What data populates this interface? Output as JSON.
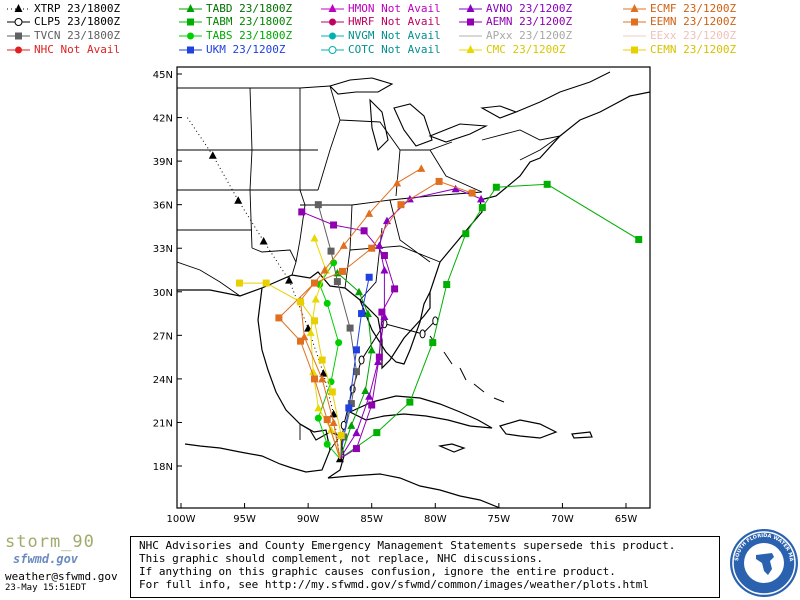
{
  "legend": [
    {
      "id": "xtrp",
      "text": "XTRP 23/1800Z",
      "color": "#000000",
      "marker": "triangle",
      "line": "dotted"
    },
    {
      "id": "clp5",
      "text": "CLP5 23/1800Z",
      "color": "#000000",
      "marker": "circle-open"
    },
    {
      "id": "tvcn",
      "text": "TVCN 23/1800Z",
      "color": "#606060",
      "marker": "square"
    },
    {
      "id": "nhc",
      "text": "NHC Not Avail",
      "color": "#e02020",
      "marker": "circle"
    },
    {
      "id": "tabd",
      "text": "TABD 23/1800Z",
      "color": "#00a000",
      "marker": "triangle"
    },
    {
      "id": "tabm",
      "text": "TABM 23/1800Z",
      "color": "#00b000",
      "marker": "square"
    },
    {
      "id": "tabs",
      "text": "TABS 23/1800Z",
      "color": "#00d000",
      "marker": "circle"
    },
    {
      "id": "ukm",
      "text": "UKM  23/1200Z",
      "color": "#2040e0",
      "marker": "square"
    },
    {
      "id": "hmon",
      "text": "HMON Not Avail",
      "color": "#c000c0",
      "marker": "triangle"
    },
    {
      "id": "hwrf",
      "text": "HWRF Not Avail",
      "color": "#c00060",
      "marker": "circle"
    },
    {
      "id": "nvgm",
      "text": "NVGM Not Avail",
      "color": "#00b0b0",
      "marker": "circle"
    },
    {
      "id": "cotc",
      "text": "COTC Not Avail",
      "color": "#00b0b0",
      "marker": "circle-open"
    },
    {
      "id": "avno",
      "text": "AVNO 23/1200Z",
      "color": "#8a00c0",
      "marker": "triangle"
    },
    {
      "id": "aemn",
      "text": "AEMN 23/1200Z",
      "color": "#9000b0",
      "marker": "square"
    },
    {
      "id": "apxx",
      "text": "APxx 23/1200Z",
      "color": "#b0b0b0",
      "marker": "none"
    },
    {
      "id": "cmc",
      "text": "CMC  23/1200Z",
      "color": "#e8d800",
      "marker": "triangle"
    },
    {
      "id": "ecmf",
      "text": "ECMF 23/1200Z",
      "color": "#e07020",
      "marker": "triangle"
    },
    {
      "id": "eemn",
      "text": "EEMN 23/1200Z",
      "color": "#e07020",
      "marker": "square"
    },
    {
      "id": "eexx",
      "text": "EExx 23/1200Z",
      "color": "#f0c8c0",
      "marker": "none"
    },
    {
      "id": "cemn",
      "text": "CEMN 23/1200Z",
      "color": "#e8d000",
      "marker": "square"
    }
  ],
  "map": {
    "lon_range": [
      -100,
      -62
    ],
    "lat_range": [
      15,
      46
    ],
    "lat_ticks": [
      "45N",
      "42N",
      "39N",
      "36N",
      "33N",
      "30N",
      "27N",
      "24N",
      "21N",
      "18N"
    ],
    "lon_ticks": [
      "100W",
      "95W",
      "90W",
      "85W",
      "80W",
      "75W",
      "70W",
      "65W"
    ]
  },
  "tracks": {
    "xtrp": [
      [
        -99.5,
        42
      ],
      [
        -97.5,
        39.4
      ],
      [
        -95.5,
        36.3
      ],
      [
        -93.5,
        33.5
      ],
      [
        -91.5,
        30.8
      ],
      [
        -90,
        27.5
      ],
      [
        -88.8,
        24.4
      ],
      [
        -88,
        21.6
      ],
      [
        -87.5,
        18.5
      ]
    ],
    "clp5": [
      [
        -87.5,
        18.5
      ],
      [
        -87.2,
        20.8
      ],
      [
        -86.5,
        23.3
      ],
      [
        -85.8,
        25.3
      ],
      [
        -84,
        27.8
      ],
      [
        -81,
        27.1
      ],
      [
        -80,
        28
      ]
    ],
    "tvcn": [
      [
        -87.5,
        18.5
      ],
      [
        -87.2,
        20
      ],
      [
        -86.6,
        22.3
      ],
      [
        -86.2,
        24.5
      ],
      [
        -86.7,
        27.5
      ],
      [
        -87.7,
        30.7
      ],
      [
        -88.2,
        32.8
      ],
      [
        -89.2,
        36
      ]
    ],
    "tabd": [
      [
        -87.5,
        18.5
      ],
      [
        -86.6,
        20.8
      ],
      [
        -85.5,
        23.2
      ],
      [
        -85,
        26
      ],
      [
        -85.3,
        28.5
      ],
      [
        -86,
        30
      ],
      [
        -87.7,
        31.3
      ]
    ],
    "tabm": [
      [
        -87.5,
        18.5
      ],
      [
        -84.6,
        20.3
      ],
      [
        -82,
        22.4
      ],
      [
        -80.2,
        26.5
      ],
      [
        -79.1,
        30.5
      ],
      [
        -77.6,
        34
      ],
      [
        -76.3,
        35.8
      ],
      [
        -75.2,
        37.2
      ],
      [
        -71.2,
        37.4
      ],
      [
        -64,
        33.6
      ]
    ],
    "tabs": [
      [
        -87.5,
        18.5
      ],
      [
        -88.5,
        19.5
      ],
      [
        -89.2,
        21.3
      ],
      [
        -88.2,
        23.8
      ],
      [
        -87.6,
        26.5
      ],
      [
        -88.5,
        29.2
      ],
      [
        -89.1,
        30.5
      ],
      [
        -88,
        32
      ]
    ],
    "ukm": [
      [
        -87.5,
        18.5
      ],
      [
        -86.8,
        22
      ],
      [
        -86.2,
        26
      ],
      [
        -85.8,
        28.5
      ],
      [
        -85.2,
        31
      ]
    ],
    "avno": [
      [
        -87.5,
        18.5
      ],
      [
        -86.2,
        20.3
      ],
      [
        -85.2,
        22.8
      ],
      [
        -84.5,
        25.2
      ],
      [
        -84,
        28.3
      ],
      [
        -84,
        31.5
      ],
      [
        -84.4,
        33.2
      ],
      [
        -83.8,
        34.9
      ],
      [
        -82,
        36.4
      ],
      [
        -78.4,
        37.1
      ],
      [
        -76.4,
        36.4
      ]
    ],
    "aemn": [
      [
        -87.5,
        18.5
      ],
      [
        -86.2,
        19.2
      ],
      [
        -85,
        22.2
      ],
      [
        -84.4,
        25.5
      ],
      [
        -84.2,
        28.6
      ],
      [
        -83.2,
        30.2
      ],
      [
        -84,
        32.5
      ],
      [
        -85.6,
        34.2
      ],
      [
        -88,
        34.6
      ],
      [
        -90.5,
        35.5
      ]
    ],
    "cmc": [
      [
        -87.5,
        18.5
      ],
      [
        -88.2,
        20.5
      ],
      [
        -89.2,
        22
      ],
      [
        -89.6,
        24.5
      ],
      [
        -89.8,
        27.2
      ],
      [
        -89.4,
        29.5
      ],
      [
        -88.6,
        31.5
      ],
      [
        -89.5,
        33.7
      ]
    ],
    "ecmf": [
      [
        -87.5,
        18.5
      ],
      [
        -88,
        21
      ],
      [
        -88.9,
        24
      ],
      [
        -90.3,
        26.9
      ],
      [
        -90.6,
        29.4
      ],
      [
        -88.7,
        31.5
      ],
      [
        -87.2,
        33.2
      ],
      [
        -85.2,
        35.4
      ],
      [
        -83,
        37.5
      ],
      [
        -81.1,
        38.5
      ]
    ],
    "eemn": [
      [
        -87.5,
        18.5
      ],
      [
        -88.5,
        21.2
      ],
      [
        -89.5,
        24
      ],
      [
        -90.6,
        26.6
      ],
      [
        -92.3,
        28.2
      ],
      [
        -89.5,
        30.6
      ],
      [
        -87.3,
        31.4
      ],
      [
        -85,
        33
      ],
      [
        -82.7,
        36
      ],
      [
        -79.7,
        37.6
      ],
      [
        -77.1,
        36.8
      ]
    ],
    "cemn": [
      [
        -87.5,
        18.5
      ],
      [
        -87.4,
        20.1
      ],
      [
        -88.1,
        23.1
      ],
      [
        -88.9,
        25.3
      ],
      [
        -89.5,
        28
      ],
      [
        -90.6,
        29.3
      ],
      [
        -93.3,
        30.6
      ],
      [
        -95.4,
        30.6
      ]
    ]
  },
  "footer": {
    "brand": "storm_90",
    "site": "sfwmd.gov",
    "email": "weather@sfwmd.gov",
    "timestamp": "23-May 15:51EDT",
    "disclaimer": [
      "NHC Advisories and County Emergency Management Statements supersede this product.",
      "This graphic should complement, not replace, NHC discussions.",
      "If anything on this graphic causes confusion, ignore the entire product.",
      "For full info, see  http://my.sfwmd.gov/sfwmd/common/images/weather/plots.html"
    ],
    "seal_text": "SOUTH FLORIDA WATER MANAGEMENT DISTRICT"
  }
}
